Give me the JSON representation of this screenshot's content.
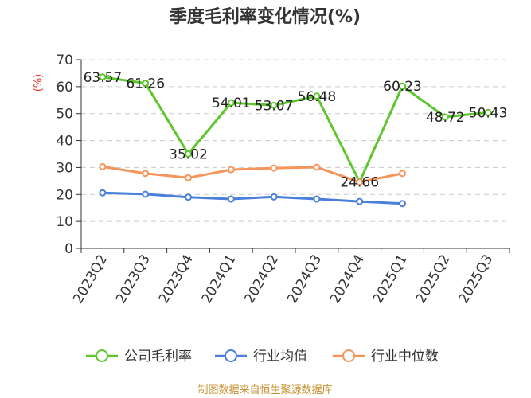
{
  "title": "季度毛利率变化情况(%)",
  "source": "制图数据来自恒生聚源数据库",
  "colors": {
    "series_gross": "#5cc62b",
    "series_avg": "#4a7fdb",
    "series_median": "#f5955b",
    "unit": "#e6312c",
    "source": "#c8902e",
    "grid": "#cccccc",
    "axis": "#333333"
  },
  "chart_data": {
    "type": "line",
    "title": "季度毛利率变化情况(%)",
    "ylabel": "(%)",
    "xlabel": "",
    "ylim": [
      0,
      70
    ],
    "yticks": [
      0,
      10,
      20,
      30,
      40,
      50,
      60,
      70
    ],
    "grid": true,
    "legend_position": "bottom",
    "categories": [
      "2023Q2",
      "2023Q3",
      "2023Q4",
      "2024Q1",
      "2024Q2",
      "2024Q3",
      "2024Q4",
      "2025Q1",
      "2025Q2",
      "2025Q3"
    ],
    "series": [
      {
        "name": "公司毛利率",
        "color": "#5cc62b",
        "values": [
          63.57,
          61.26,
          35.02,
          54.01,
          53.07,
          56.48,
          24.66,
          60.23,
          48.72,
          50.43
        ],
        "labels": [
          "63.57",
          "61.26",
          "35.02",
          "54.01",
          "53.07",
          "56.48",
          "24.66",
          "60.23",
          "48.72",
          "50.43"
        ]
      },
      {
        "name": "行业均值",
        "color": "#4a7fdb",
        "values": [
          20.6,
          20.1,
          19.0,
          18.3,
          19.1,
          18.3,
          17.4,
          16.6,
          null,
          null
        ]
      },
      {
        "name": "行业中位数",
        "color": "#f5955b",
        "values": [
          30.3,
          27.8,
          26.2,
          29.2,
          29.8,
          30.1,
          24.6,
          27.8,
          null,
          null
        ]
      }
    ]
  }
}
